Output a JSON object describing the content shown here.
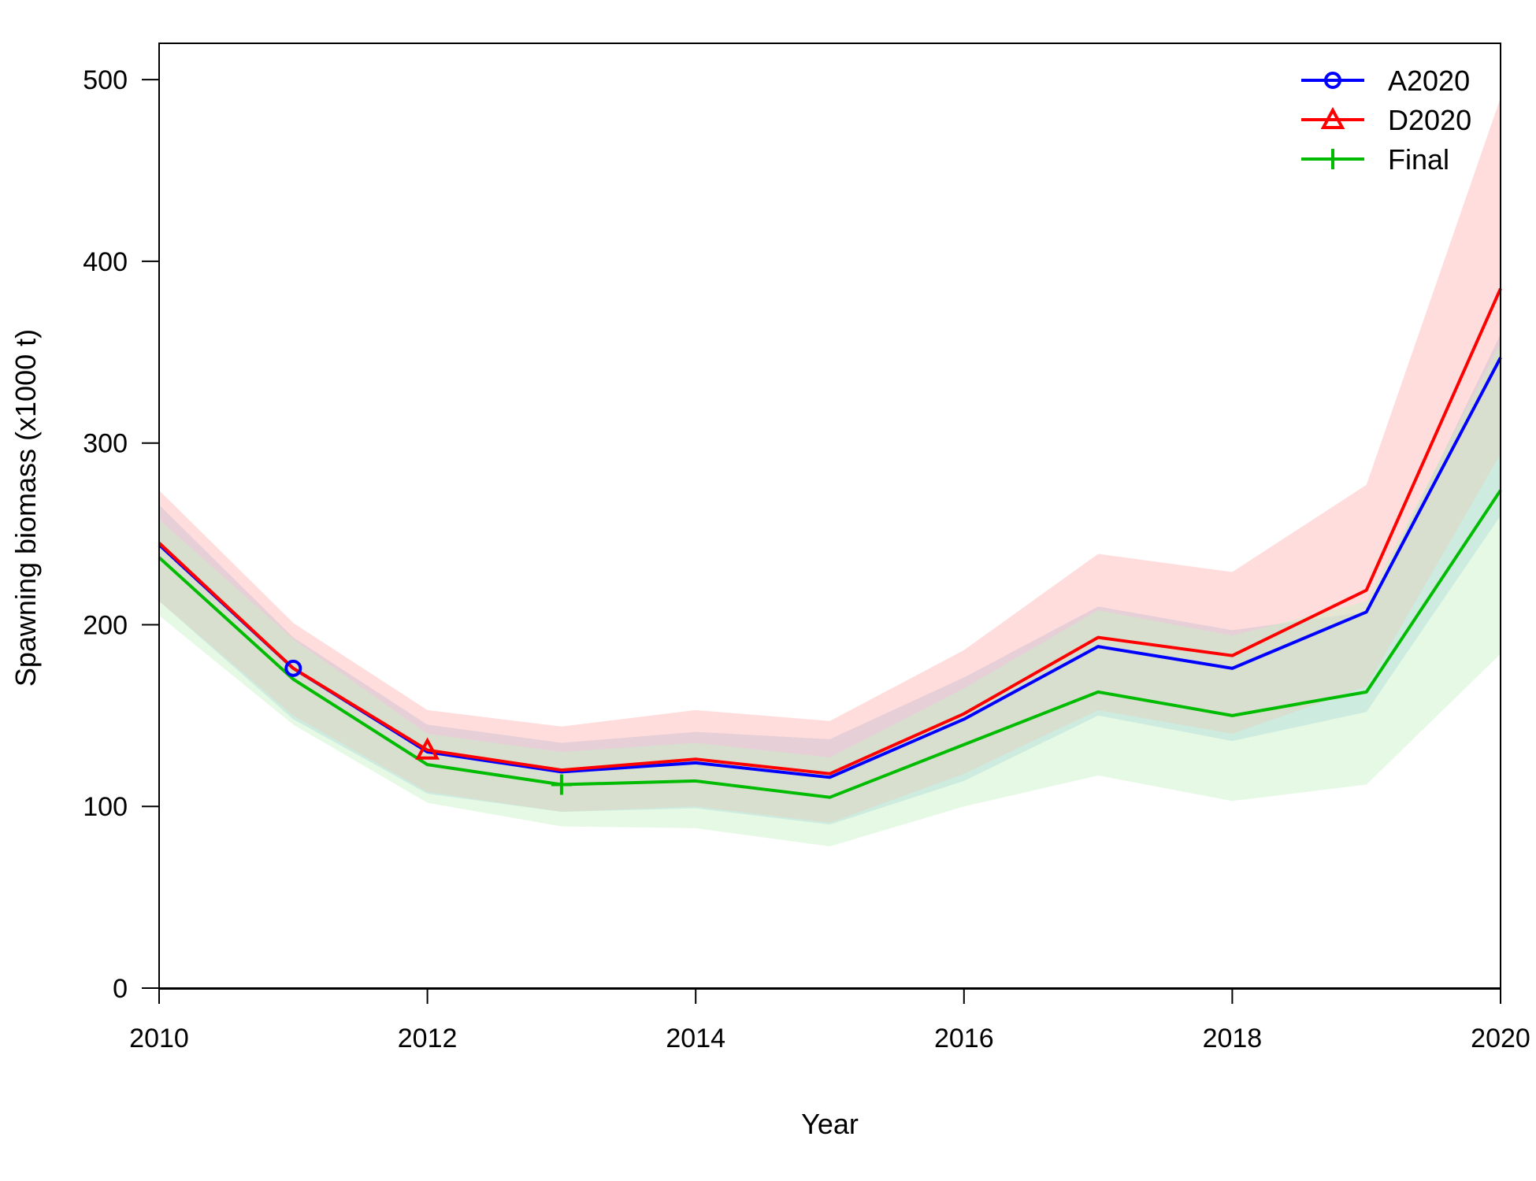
{
  "chart_data": {
    "type": "line",
    "xlabel": "Year",
    "ylabel": "Spawning biomass (x1000 t)",
    "xlim": [
      2010,
      2020
    ],
    "ylim": [
      0,
      520
    ],
    "x": [
      2010,
      2011,
      2012,
      2013,
      2014,
      2015,
      2016,
      2017,
      2018,
      2019,
      2020
    ],
    "x_ticks": [
      "2010",
      "2012",
      "2014",
      "2016",
      "2018",
      "2020"
    ],
    "y_ticks": [
      "0",
      "100",
      "200",
      "300",
      "400",
      "500"
    ],
    "grid": false,
    "legend_position": "top-right",
    "series": [
      {
        "name": "A2020",
        "color": "#0000ff",
        "band_color": "#9fc6e8",
        "marker": "circle",
        "marker_index": 1,
        "values": [
          244,
          176,
          130,
          119,
          124,
          116,
          148,
          188,
          176,
          207,
          347
        ],
        "lower": [
          213,
          148,
          107,
          97,
          99,
          90,
          114,
          150,
          136,
          152,
          260
        ],
        "upper": [
          266,
          193,
          145,
          135,
          141,
          137,
          171,
          210,
          197,
          207,
          360
        ]
      },
      {
        "name": "D2020",
        "color": "#ff0000",
        "band_color": "#ffb3b3",
        "marker": "triangle",
        "marker_index": 2,
        "values": [
          245,
          176,
          131,
          120,
          126,
          118,
          151,
          193,
          183,
          219,
          385
        ],
        "lower": [
          213,
          150,
          108,
          97,
          100,
          91,
          118,
          153,
          140,
          166,
          294
        ],
        "upper": [
          274,
          201,
          153,
          144,
          153,
          147,
          186,
          239,
          229,
          277,
          490
        ]
      },
      {
        "name": "Final",
        "color": "#00bb00",
        "band_color": "#c6f2c6",
        "marker": "plus",
        "marker_index": 3,
        "values": [
          237,
          170,
          123,
          112,
          114,
          105,
          134,
          163,
          150,
          163,
          274
        ],
        "lower": [
          205,
          145,
          102,
          89,
          88,
          78,
          100,
          117,
          103,
          112,
          184
        ],
        "upper": [
          258,
          192,
          140,
          130,
          135,
          127,
          165,
          208,
          194,
          213,
          355
        ]
      }
    ]
  }
}
